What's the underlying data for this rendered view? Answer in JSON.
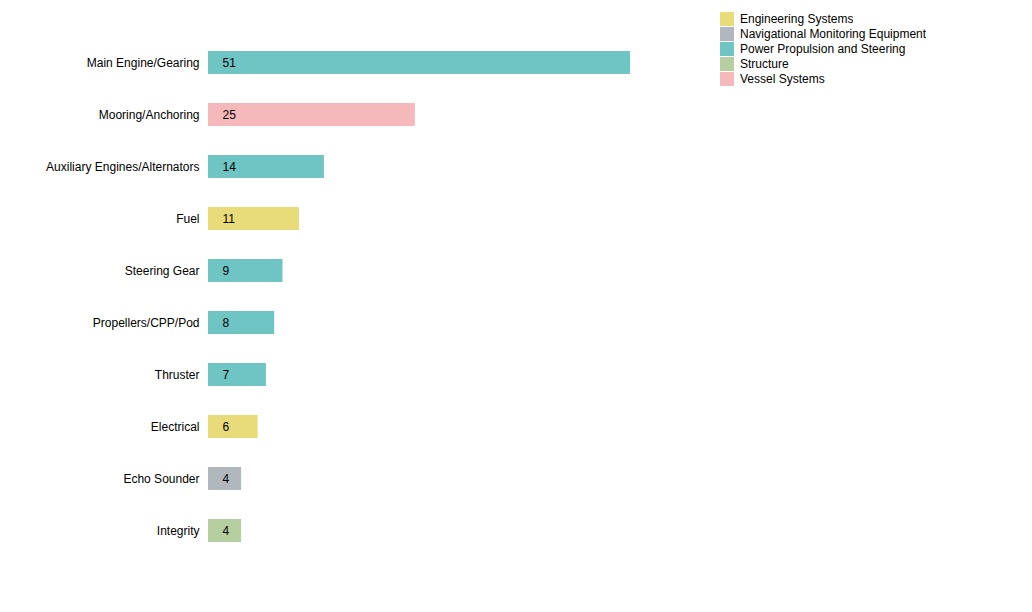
{
  "chart_data": {
    "type": "bar",
    "orientation": "horizontal",
    "categories": [
      "Integrity",
      "Echo Sounder",
      "Electrical",
      "Thruster",
      "Propellers/CPP/Pod",
      "Steering Gear",
      "Fuel",
      "Auxiliary Engines/Alternators",
      "Mooring/Anchoring",
      "Main Engine/Gearing"
    ],
    "values": [
      4,
      4,
      6,
      7,
      8,
      9,
      11,
      14,
      25,
      51
    ],
    "colors": [
      "#b5cfa0",
      "#b0b8be",
      "#e8db7a",
      "#6ec5c4",
      "#6ec5c4",
      "#6ec5c4",
      "#e8db7a",
      "#6ec5c4",
      "#f5b8bb",
      "#6ec5c4"
    ],
    "xlim": [
      0,
      58
    ],
    "tick_labels": "y",
    "data_labels": true,
    "grid": false,
    "legend": "upper right",
    "legend_items": [
      {
        "name": "Engineering Systems",
        "color": "#e8db7a"
      },
      {
        "name": "Navigational Monitoring Equipment",
        "color": "#b0b8be"
      },
      {
        "name": "Power Propulsion and Steering",
        "color": "#6ec5c4"
      },
      {
        "name": "Structure",
        "color": "#b5cfa0"
      },
      {
        "name": "Vessel Systems",
        "color": "#f5b8bb"
      }
    ]
  }
}
